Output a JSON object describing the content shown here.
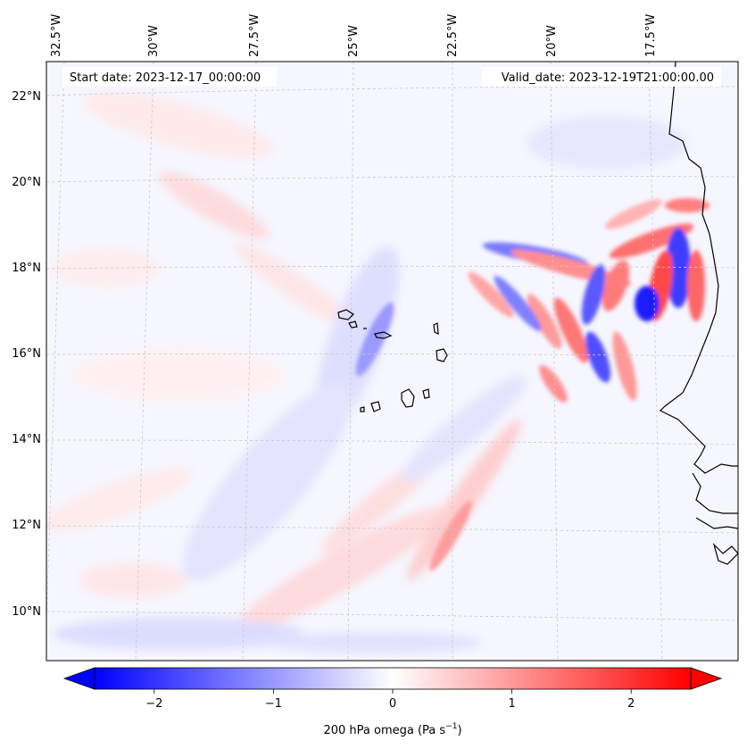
{
  "map": {
    "start_date": "Start date: 2023-12-17_00:00:00",
    "valid_date": "Valid_date: 2023-12-19T21:00:00.00",
    "lon_labels": [
      "32.5°W",
      "30°W",
      "27.5°W",
      "25°W",
      "22.5°W",
      "20°W",
      "17.5°W"
    ],
    "lat_labels": [
      "22°N",
      "20°N",
      "18°N",
      "16°N",
      "14°N",
      "12°N",
      "10°N"
    ],
    "field": "200 hPa omega",
    "colormap": "bwr",
    "colors": {
      "negative": "#0000ff",
      "zero": "#ffffff",
      "positive": "#ff0000",
      "coast": "#000000",
      "grid": "#b0b0b0"
    }
  },
  "colorbar": {
    "label_main": "200 hPa omega (Pa s",
    "label_sup": "−1",
    "label_end": ")",
    "ticks": [
      "−2",
      "−1",
      "0",
      "1",
      "2"
    ],
    "tick_values": [
      -2,
      -1,
      0,
      1,
      2
    ],
    "vmin": -2.5,
    "vmax": 2.5,
    "extend": "both"
  }
}
